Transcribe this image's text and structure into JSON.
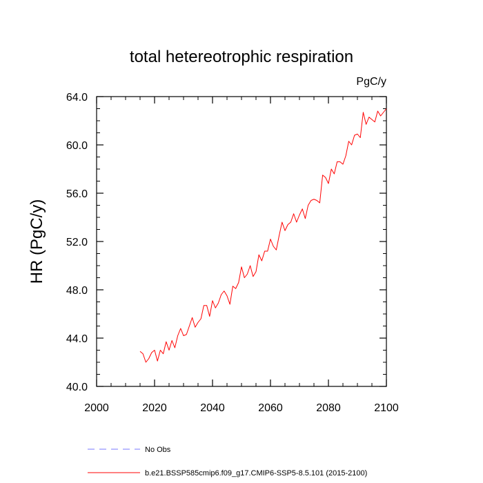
{
  "chart_data": {
    "type": "line",
    "title": "total hetereotrophic respiration",
    "units": "PgC/y",
    "ylabel": "HR  (PgC/y)",
    "xlabel": "",
    "xlim": [
      2000,
      2100
    ],
    "ylim": [
      40,
      64
    ],
    "xticks": [
      2000,
      2020,
      2040,
      2060,
      2080,
      2100
    ],
    "xtick_labels": [
      "2000",
      "2020",
      "2040",
      "2060",
      "2080",
      "2100"
    ],
    "yticks": [
      40,
      44,
      48,
      52,
      56,
      60,
      64
    ],
    "ytick_labels": [
      "40.0",
      "44.0",
      "48.0",
      "52.0",
      "56.0",
      "60.0",
      "64.0"
    ],
    "grid": false,
    "legend_position": "bottom-left",
    "legend": [
      {
        "label": "No Obs",
        "color": "#7777ff",
        "style": "dashed"
      },
      {
        "label": "b.e21.BSSP585cmip6.f09_g17.CMIP6-SSP5-8.5.101 (2015-2100)",
        "color": "#ff0000",
        "style": "solid"
      }
    ],
    "series": [
      {
        "name": "b.e21.BSSP585cmip6.f09_g17.CMIP6-SSP5-8.5.101 (2015-2100)",
        "color": "#ff0000",
        "x": [
          2015,
          2016,
          2017,
          2018,
          2019,
          2020,
          2021,
          2022,
          2023,
          2024,
          2025,
          2026,
          2027,
          2028,
          2029,
          2030,
          2031,
          2032,
          2033,
          2034,
          2035,
          2036,
          2037,
          2038,
          2039,
          2040,
          2041,
          2042,
          2043,
          2044,
          2045,
          2046,
          2047,
          2048,
          2049,
          2050,
          2051,
          2052,
          2053,
          2054,
          2055,
          2056,
          2057,
          2058,
          2059,
          2060,
          2061,
          2062,
          2063,
          2064,
          2065,
          2066,
          2067,
          2068,
          2069,
          2070,
          2071,
          2072,
          2073,
          2074,
          2075,
          2076,
          2077,
          2078,
          2079,
          2080,
          2081,
          2082,
          2083,
          2084,
          2085,
          2086,
          2087,
          2088,
          2089,
          2090,
          2091,
          2092,
          2093,
          2094,
          2095,
          2096,
          2097,
          2098,
          2099,
          2100
        ],
        "y": [
          42.9,
          42.7,
          42.0,
          42.3,
          42.8,
          43.0,
          42.1,
          43.0,
          42.7,
          43.7,
          43.0,
          43.8,
          43.2,
          44.2,
          44.8,
          44.2,
          44.3,
          45.0,
          45.7,
          44.9,
          45.3,
          45.6,
          46.7,
          46.7,
          45.8,
          47.1,
          46.5,
          46.9,
          47.6,
          47.9,
          47.5,
          46.8,
          48.3,
          48.1,
          48.6,
          49.9,
          49.0,
          49.3,
          50.0,
          49.1,
          49.5,
          50.9,
          50.4,
          51.2,
          51.2,
          52.2,
          51.6,
          51.3,
          52.5,
          53.6,
          52.9,
          53.4,
          53.6,
          54.3,
          53.6,
          54.2,
          54.7,
          53.9,
          55.0,
          55.4,
          55.5,
          55.4,
          55.2,
          57.5,
          57.3,
          56.8,
          58.0,
          57.6,
          58.6,
          58.6,
          58.4,
          59.1,
          60.3,
          60.0,
          60.8,
          60.9,
          60.6,
          62.7,
          61.7,
          62.3,
          62.1,
          61.9,
          62.8,
          62.4,
          62.7,
          63.0
        ]
      }
    ]
  }
}
